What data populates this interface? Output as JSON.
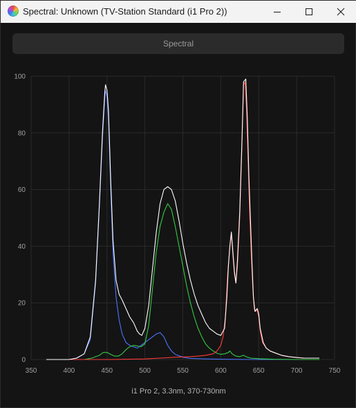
{
  "window": {
    "title": "Spectral: Unknown (TV-Station Standard (i1 Pro 2))",
    "icon": "app-color-wheel-icon"
  },
  "toolbar": {
    "spectral_label": "Spectral"
  },
  "footer": {
    "label": "i1 Pro 2, 3.3nm, 370-730nm"
  },
  "chart_data": {
    "type": "line",
    "title": "",
    "xlabel": "",
    "ylabel": "",
    "xlim": [
      350,
      750
    ],
    "ylim": [
      0,
      100
    ],
    "xticks": [
      350,
      400,
      450,
      500,
      550,
      600,
      650,
      700,
      750
    ],
    "yticks": [
      0,
      20,
      40,
      60,
      80,
      100
    ],
    "grid": true,
    "series": [
      {
        "color": "#ffffff",
        "points": [
          [
            370,
            0
          ],
          [
            380,
            0
          ],
          [
            390,
            0
          ],
          [
            400,
            0
          ],
          [
            410,
            0.5
          ],
          [
            420,
            2
          ],
          [
            428,
            8
          ],
          [
            435,
            28
          ],
          [
            440,
            55
          ],
          [
            444,
            80
          ],
          [
            447,
            94
          ],
          [
            448,
            97
          ],
          [
            450,
            95
          ],
          [
            452,
            88
          ],
          [
            455,
            63
          ],
          [
            458,
            42
          ],
          [
            462,
            28
          ],
          [
            466,
            23
          ],
          [
            470,
            21
          ],
          [
            475,
            18
          ],
          [
            480,
            15
          ],
          [
            485,
            13
          ],
          [
            490,
            10
          ],
          [
            493,
            9
          ],
          [
            496,
            8.5
          ],
          [
            500,
            11
          ],
          [
            505,
            19
          ],
          [
            510,
            32
          ],
          [
            515,
            45
          ],
          [
            520,
            55
          ],
          [
            525,
            60
          ],
          [
            530,
            61
          ],
          [
            535,
            60
          ],
          [
            540,
            56
          ],
          [
            545,
            49
          ],
          [
            550,
            41
          ],
          [
            555,
            34
          ],
          [
            560,
            28
          ],
          [
            565,
            23
          ],
          [
            570,
            19
          ],
          [
            575,
            16
          ],
          [
            580,
            13
          ],
          [
            585,
            11
          ],
          [
            590,
            10
          ],
          [
            595,
            9
          ],
          [
            600,
            8.5
          ],
          [
            605,
            11
          ],
          [
            608,
            22
          ],
          [
            610,
            33
          ],
          [
            612,
            40
          ],
          [
            614,
            45
          ],
          [
            616,
            38
          ],
          [
            618,
            31
          ],
          [
            620,
            27
          ],
          [
            622,
            35
          ],
          [
            625,
            52
          ],
          [
            628,
            78
          ],
          [
            630,
            98
          ],
          [
            633,
            99
          ],
          [
            635,
            85
          ],
          [
            637,
            65
          ],
          [
            639,
            50
          ],
          [
            641,
            35
          ],
          [
            643,
            22
          ],
          [
            645,
            17
          ],
          [
            648,
            18
          ],
          [
            650,
            16
          ],
          [
            652,
            11
          ],
          [
            656,
            6
          ],
          [
            660,
            4
          ],
          [
            665,
            3
          ],
          [
            670,
            2.5
          ],
          [
            680,
            1.5
          ],
          [
            690,
            1
          ],
          [
            700,
            0.7
          ],
          [
            710,
            0.5
          ],
          [
            720,
            0.5
          ],
          [
            730,
            0.5
          ]
        ]
      },
      {
        "color": "#4a74ff",
        "points": [
          [
            370,
            0
          ],
          [
            380,
            0
          ],
          [
            390,
            0
          ],
          [
            400,
            0
          ],
          [
            410,
            0.5
          ],
          [
            420,
            2
          ],
          [
            428,
            7
          ],
          [
            435,
            27
          ],
          [
            440,
            54
          ],
          [
            444,
            78
          ],
          [
            447,
            92
          ],
          [
            448,
            95
          ],
          [
            450,
            93
          ],
          [
            452,
            85
          ],
          [
            455,
            60
          ],
          [
            458,
            38
          ],
          [
            462,
            22
          ],
          [
            466,
            14
          ],
          [
            470,
            9
          ],
          [
            475,
            6
          ],
          [
            480,
            5
          ],
          [
            485,
            4.5
          ],
          [
            490,
            4
          ],
          [
            495,
            5
          ],
          [
            500,
            6
          ],
          [
            505,
            7
          ],
          [
            510,
            8
          ],
          [
            515,
            9
          ],
          [
            520,
            9.5
          ],
          [
            525,
            8
          ],
          [
            530,
            5
          ],
          [
            535,
            3
          ],
          [
            540,
            1.8
          ],
          [
            550,
            0.8
          ],
          [
            560,
            0.4
          ],
          [
            580,
            0.2
          ],
          [
            600,
            0.1
          ],
          [
            650,
            0
          ],
          [
            730,
            0
          ]
        ]
      },
      {
        "color": "#33cc44",
        "points": [
          [
            370,
            0
          ],
          [
            400,
            0
          ],
          [
            420,
            0
          ],
          [
            430,
            0.5
          ],
          [
            440,
            1.5
          ],
          [
            445,
            2.5
          ],
          [
            450,
            2.5
          ],
          [
            455,
            1.8
          ],
          [
            460,
            1.2
          ],
          [
            465,
            1.2
          ],
          [
            470,
            2
          ],
          [
            475,
            3.5
          ],
          [
            480,
            4.5
          ],
          [
            485,
            5
          ],
          [
            490,
            4.8
          ],
          [
            495,
            4.5
          ],
          [
            500,
            5.5
          ],
          [
            505,
            12
          ],
          [
            510,
            25
          ],
          [
            515,
            38
          ],
          [
            520,
            47
          ],
          [
            525,
            52
          ],
          [
            530,
            55
          ],
          [
            535,
            53
          ],
          [
            540,
            47
          ],
          [
            545,
            40
          ],
          [
            550,
            33
          ],
          [
            555,
            26
          ],
          [
            560,
            20
          ],
          [
            565,
            15
          ],
          [
            570,
            11
          ],
          [
            575,
            8
          ],
          [
            580,
            5.5
          ],
          [
            585,
            4
          ],
          [
            590,
            3
          ],
          [
            595,
            2.2
          ],
          [
            600,
            1.8
          ],
          [
            605,
            2
          ],
          [
            610,
            2.5
          ],
          [
            612,
            3
          ],
          [
            615,
            2
          ],
          [
            620,
            1.2
          ],
          [
            625,
            1
          ],
          [
            630,
            1.5
          ],
          [
            632,
            1.2
          ],
          [
            635,
            0.8
          ],
          [
            640,
            0.5
          ],
          [
            650,
            0.3
          ],
          [
            670,
            0.1
          ],
          [
            700,
            0
          ],
          [
            730,
            0
          ]
        ]
      },
      {
        "color": "#ff3b3b",
        "points": [
          [
            370,
            0
          ],
          [
            450,
            0
          ],
          [
            500,
            0.2
          ],
          [
            520,
            0.5
          ],
          [
            540,
            0.8
          ],
          [
            560,
            1
          ],
          [
            570,
            1.2
          ],
          [
            580,
            1.5
          ],
          [
            590,
            2
          ],
          [
            595,
            3
          ],
          [
            600,
            5
          ],
          [
            603,
            8
          ],
          [
            606,
            15
          ],
          [
            609,
            30
          ],
          [
            612,
            40
          ],
          [
            614,
            44
          ],
          [
            616,
            37
          ],
          [
            618,
            30
          ],
          [
            620,
            27
          ],
          [
            622,
            33
          ],
          [
            625,
            50
          ],
          [
            628,
            76
          ],
          [
            630,
            97
          ],
          [
            632,
            98
          ],
          [
            634,
            88
          ],
          [
            636,
            70
          ],
          [
            638,
            52
          ],
          [
            640,
            38
          ],
          [
            642,
            26
          ],
          [
            644,
            18
          ],
          [
            646,
            17
          ],
          [
            648,
            17.5
          ],
          [
            650,
            15
          ],
          [
            652,
            10
          ],
          [
            655,
            6
          ],
          [
            660,
            4
          ],
          [
            665,
            3
          ],
          [
            670,
            2.5
          ],
          [
            680,
            1.5
          ],
          [
            690,
            1
          ],
          [
            700,
            0.7
          ],
          [
            710,
            0.5
          ],
          [
            720,
            0.5
          ],
          [
            730,
            0.5
          ]
        ]
      }
    ]
  }
}
